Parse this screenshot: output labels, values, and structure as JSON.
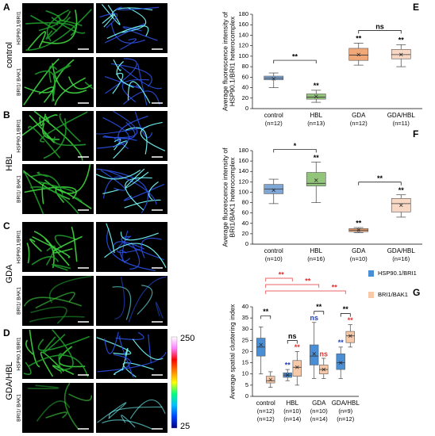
{
  "micrographs": {
    "letters": [
      "A",
      "B",
      "C",
      "D"
    ],
    "conditions": [
      "control",
      "HBL",
      "GDA",
      "GDA/HBL"
    ],
    "channels": [
      "HSP90.1/BRI1",
      "BRI1/ BAK1"
    ],
    "colorbar_ticks": [
      250,
      25
    ]
  },
  "chart_data": [
    {
      "letter": "E",
      "type": "box",
      "ylabel": [
        "Average fluorescence intensity of",
        "HSP90.1/BRI1 heterocomplex"
      ],
      "ylim": [
        0,
        180
      ],
      "yticks": [
        0,
        20,
        40,
        60,
        80,
        100,
        120,
        140,
        160,
        180
      ],
      "categories": [
        "control",
        "HBL",
        "GDA",
        "GDA/HBL"
      ],
      "n_labels": [
        [
          "(n=12)"
        ],
        [
          "(n=13)"
        ],
        [
          "(n=12)"
        ],
        [
          "(n=11)"
        ]
      ],
      "series": [
        {
          "colors": [
            "#7fa7d6",
            "#92c47a",
            "#f0a878",
            "#f8d8c4"
          ],
          "mark_color": "#000000",
          "boxes": [
            {
              "min": 40,
              "q1": 55,
              "median": 58,
              "q3": 62,
              "max": 68,
              "mean": 57
            },
            {
              "min": 12,
              "q1": 18,
              "median": 22,
              "q3": 28,
              "max": 35,
              "mean": 23
            },
            {
              "min": 83,
              "q1": 92,
              "median": 102,
              "q3": 115,
              "max": 125,
              "mean": 103
            },
            {
              "min": 80,
              "q1": 95,
              "median": 103,
              "q3": 113,
              "max": 122,
              "mean": 103
            }
          ],
          "marks": [
            null,
            "**",
            "**",
            "**"
          ]
        }
      ],
      "brackets": [
        {
          "between": [
            "control",
            "HBL"
          ],
          "label": "**"
        },
        {
          "between": [
            "GDA",
            "GDA/HBL"
          ],
          "label": "ns"
        }
      ]
    },
    {
      "letter": "F",
      "type": "box",
      "ylabel": [
        "Average fluorescence intensity of",
        "BRI1/BAK1 heterocomplex"
      ],
      "ylim": [
        0,
        180
      ],
      "yticks": [
        0,
        20,
        40,
        60,
        80,
        100,
        120,
        140,
        160,
        180
      ],
      "categories": [
        "control",
        "HBL",
        "GDA",
        "GDA/HBL"
      ],
      "n_labels": [
        [
          "(n=10)"
        ],
        [
          "(n=16)"
        ],
        [
          "(n=10)"
        ],
        [
          "(n=16)"
        ]
      ],
      "series": [
        {
          "colors": [
            "#7fa7d6",
            "#92c47a",
            "#f0a878",
            "#f8d8c4"
          ],
          "mark_color": "#000000",
          "boxes": [
            {
              "min": 78,
              "q1": 97,
              "median": 106,
              "q3": 115,
              "max": 125,
              "mean": 104
            },
            {
              "min": 80,
              "q1": 112,
              "median": 117,
              "q3": 138,
              "max": 158,
              "mean": 123
            },
            {
              "min": 22,
              "q1": 24,
              "median": 27,
              "q3": 30,
              "max": 32,
              "mean": 27
            },
            {
              "min": 52,
              "q1": 62,
              "median": 78,
              "q3": 88,
              "max": 95,
              "mean": 75
            }
          ],
          "marks": [
            null,
            "**",
            "**",
            "**"
          ]
        }
      ],
      "brackets": [
        {
          "between": [
            "control",
            "HBL"
          ],
          "label": "*"
        },
        {
          "between": [
            "GDA",
            "GDA/HBL"
          ],
          "label": "**"
        }
      ]
    },
    {
      "letter": "G",
      "type": "box",
      "ylabel": [
        "Average spatial clustering index"
      ],
      "ylim": [
        0,
        40
      ],
      "yticks": [
        0,
        5,
        10,
        15,
        20,
        25,
        30,
        35,
        40
      ],
      "categories": [
        "control",
        "HBL",
        "GDA",
        "GDA/HBL"
      ],
      "n_labels": [
        [
          "(n=12)",
          "(n=12)"
        ],
        [
          "(n=10)",
          "(n=14)"
        ],
        [
          "(n=10)",
          "(n=14)"
        ],
        [
          "(n=9)",
          "(n=12)"
        ]
      ],
      "legend": "right",
      "series": [
        {
          "name": "HSP90.1/BRI1",
          "color": "#4a8fd6",
          "mark_color": "#2040c0",
          "boxes": [
            {
              "min": 10,
              "q1": 18,
              "median": 22,
              "q3": 26,
              "max": 31,
              "mean": 23
            },
            {
              "min": 7,
              "q1": 8.5,
              "median": 9.5,
              "q3": 10.5,
              "max": 12,
              "mean": 9.5
            },
            {
              "min": 8,
              "q1": 14,
              "median": 18,
              "q3": 23,
              "max": 33,
              "mean": 19
            },
            {
              "min": 8,
              "q1": 12,
              "median": 15,
              "q3": 19,
              "max": 22,
              "mean": 15
            }
          ],
          "marks": [
            null,
            "**",
            "ns",
            "**"
          ]
        },
        {
          "name": "BRI1/BAK1",
          "color": "#f7c9a8",
          "mark_color": "#e03030",
          "boxes": [
            {
              "min": 4,
              "q1": 6,
              "median": 7,
              "q3": 9,
              "max": 11,
              "mean": 7.5
            },
            {
              "min": 5,
              "q1": 9,
              "median": 13,
              "q3": 16,
              "max": 20,
              "mean": 13
            },
            {
              "min": 8,
              "q1": 10,
              "median": 12,
              "q3": 14,
              "max": 17,
              "mean": 12
            },
            {
              "min": 22,
              "q1": 24,
              "median": 27,
              "q3": 29,
              "max": 32,
              "mean": 27
            }
          ],
          "marks": [
            null,
            "**",
            "ns",
            "**"
          ]
        }
      ],
      "within_brackets": [
        {
          "category": "control",
          "label": "**"
        },
        {
          "category": "HBL",
          "label": "ns"
        },
        {
          "category": "GDA",
          "label": "**"
        },
        {
          "category": "GDA/HBL",
          "label": "**"
        }
      ],
      "brackets": [
        {
          "between": [
            "control",
            "HBL"
          ],
          "label": "**",
          "color": "#e03030"
        },
        {
          "between": [
            "control",
            "GDA"
          ],
          "label": "**",
          "color": "#e03030"
        },
        {
          "between": [
            "control",
            "GDA/HBL"
          ],
          "label": "**",
          "color": "#e03030"
        }
      ]
    }
  ]
}
